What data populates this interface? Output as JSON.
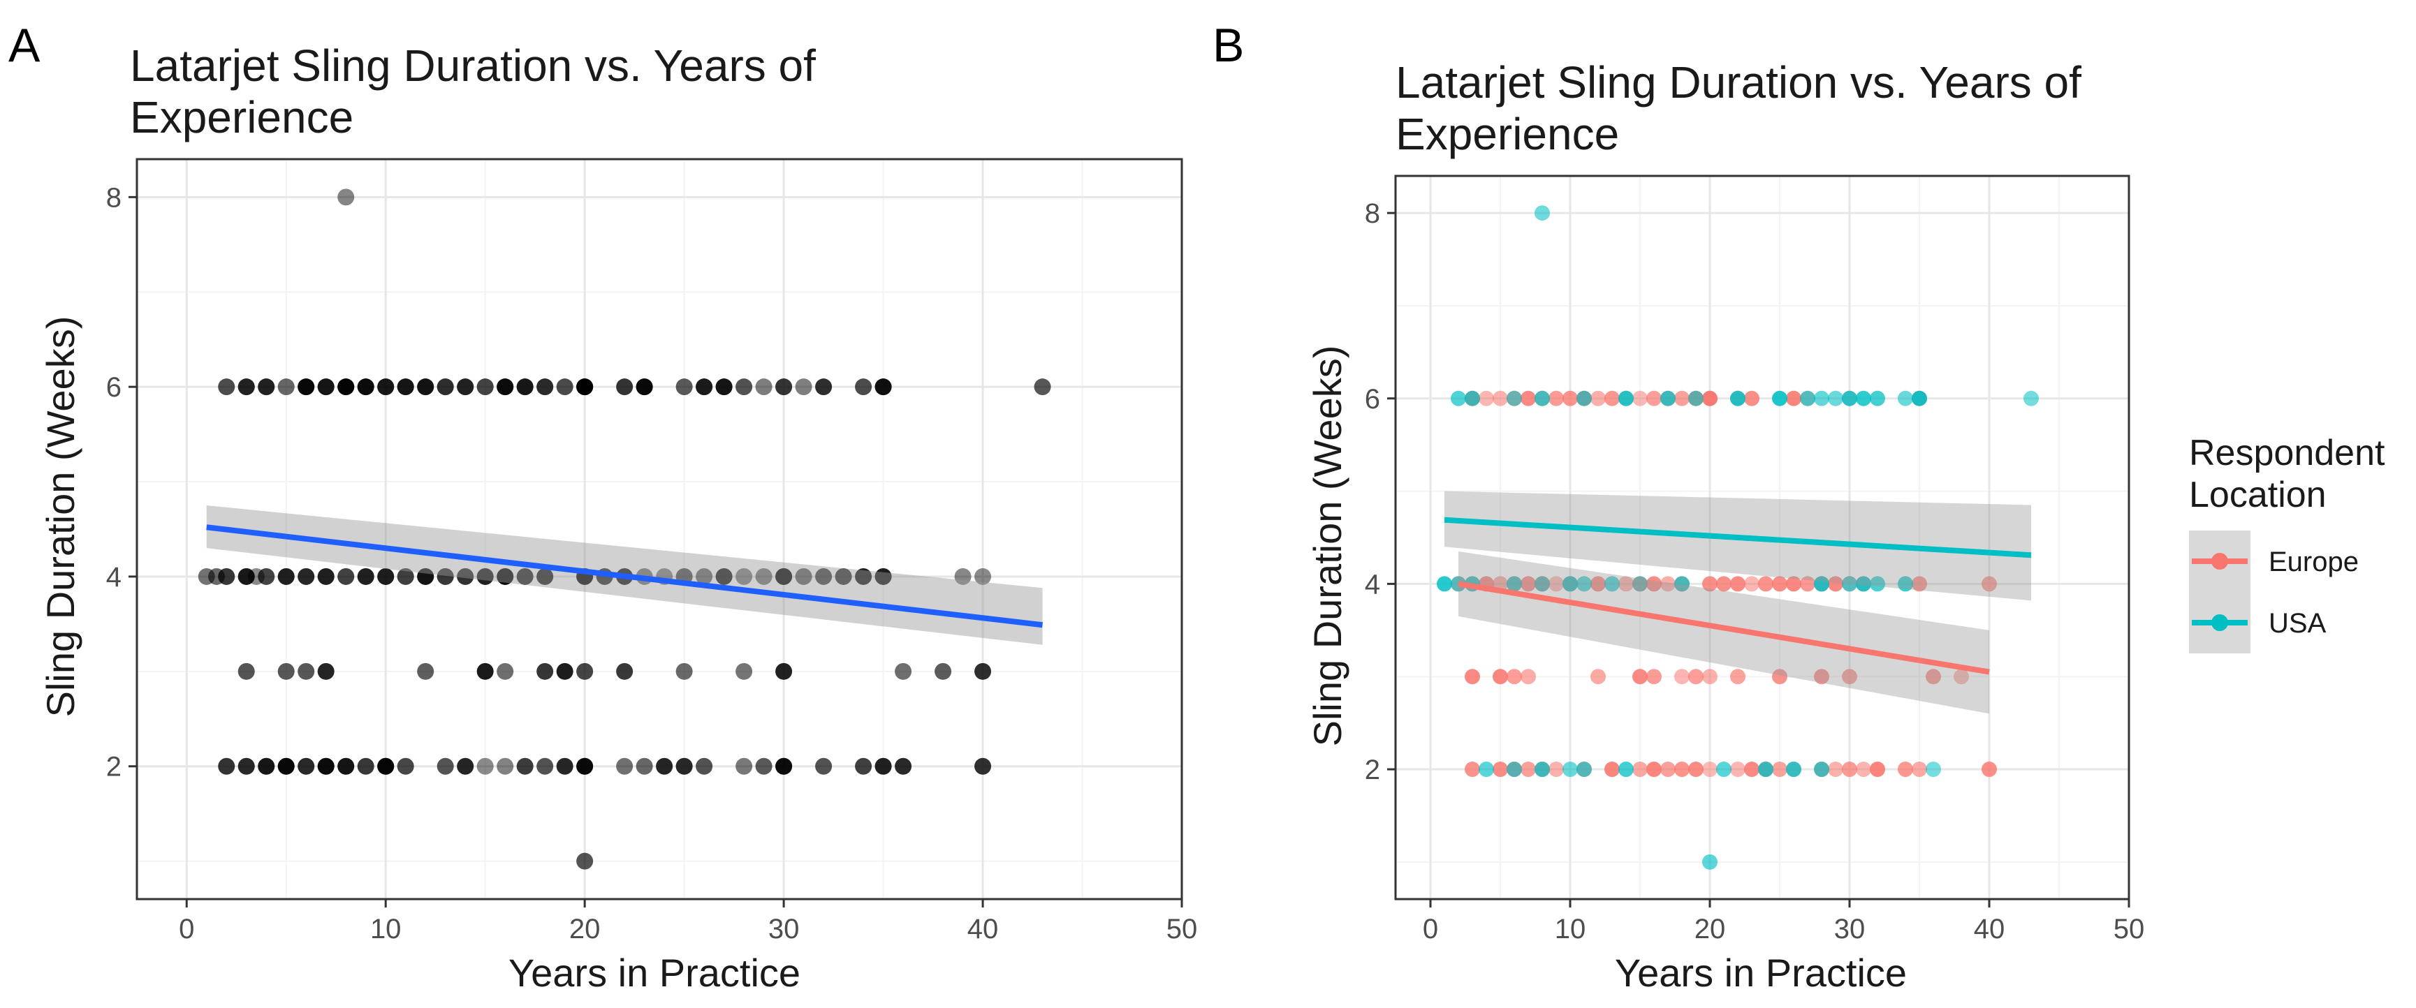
{
  "colors": {
    "panel_a_point": "#000000",
    "panel_a_fit": "#1f5fff",
    "ribbon": "#999999",
    "europe": "#f8766d",
    "usa": "#00bfc4",
    "grid_major": "#e6e6e6",
    "grid_minor": "#f3f3f3",
    "panel_border": "#333333"
  },
  "chart_data": [
    {
      "type": "scatter",
      "panel_label": "A",
      "title_lines": [
        "Latarjet Sling Duration vs. Years of",
        "Experience"
      ],
      "xlabel": "Years in Practice",
      "ylabel": "Sling Duration (Weeks)",
      "xlim": [
        -2.5,
        50
      ],
      "ylim": [
        0.6,
        8.4
      ],
      "xticks": [
        0,
        10,
        20,
        30,
        40,
        50
      ],
      "yticks": [
        2,
        4,
        6,
        8
      ],
      "grid": true,
      "legend": null,
      "points": [
        {
          "y": 8,
          "xs": [
            8
          ]
        },
        {
          "y": 6,
          "xs": [
            2,
            3,
            3,
            4,
            4,
            5,
            6,
            6,
            7,
            7,
            8,
            8,
            9,
            9,
            10,
            10,
            11,
            11,
            12,
            12,
            13,
            13,
            14,
            14,
            15,
            15,
            16,
            16,
            17,
            17,
            18,
            18,
            19,
            20,
            20,
            20,
            22,
            23,
            23,
            25,
            26,
            26,
            27,
            27,
            28,
            29,
            30,
            30,
            31,
            32,
            34,
            35,
            35,
            43
          ]
        },
        {
          "y": 4,
          "xs": [
            1,
            1.5,
            2,
            2,
            3,
            3,
            3.5,
            4,
            4,
            5,
            5,
            6,
            6,
            7,
            7,
            8,
            8,
            9,
            9,
            10,
            10,
            11,
            11,
            12,
            12,
            13,
            13,
            14,
            14,
            15,
            15,
            16,
            16,
            17,
            18,
            18,
            20,
            20,
            21,
            22,
            23,
            24,
            25,
            26,
            27,
            28,
            29,
            30,
            30,
            31,
            32,
            33,
            34,
            35,
            35,
            39,
            40
          ]
        },
        {
          "y": 3,
          "xs": [
            3,
            5,
            6,
            7,
            12,
            15,
            16,
            18,
            19,
            20,
            20,
            22,
            25,
            28,
            30,
            36,
            38,
            40
          ]
        },
        {
          "y": 2,
          "xs": [
            2,
            3,
            3,
            4,
            4,
            5,
            5,
            6,
            6,
            7,
            7,
            8,
            8,
            9,
            10,
            10,
            11,
            13,
            14,
            15,
            16,
            17,
            18,
            19,
            20,
            20,
            22,
            23,
            24,
            25,
            25,
            26,
            28,
            29,
            30,
            30,
            32,
            34,
            35,
            35,
            36,
            40
          ]
        },
        {
          "y": 1,
          "xs": [
            20
          ]
        }
      ],
      "fit": {
        "x": [
          1,
          43
        ],
        "y": [
          4.52,
          3.49
        ],
        "ribbon_lower": [
          4.3,
          3.28
        ],
        "ribbon_upper": [
          4.75,
          3.88
        ]
      }
    },
    {
      "type": "scatter",
      "panel_label": "B",
      "title_lines": [
        "Latarjet Sling Duration vs. Years of",
        "Experience"
      ],
      "xlabel": "Years in Practice",
      "ylabel": "Sling Duration (Weeks)",
      "xlim": [
        -2.5,
        50
      ],
      "ylim": [
        0.6,
        8.4
      ],
      "xticks": [
        0,
        10,
        20,
        30,
        40,
        50
      ],
      "yticks": [
        2,
        4,
        6,
        8
      ],
      "grid": true,
      "legend": {
        "title_lines": [
          "Respondent",
          "Location"
        ],
        "entries": [
          "Europe",
          "USA"
        ],
        "placement": "right"
      },
      "series": [
        {
          "name": "Europe",
          "points": [
            {
              "y": 6,
              "xs": [
                3,
                4,
                5,
                6,
                7,
                8,
                9,
                10,
                11,
                12,
                13,
                14,
                15,
                16,
                17,
                18,
                19,
                20,
                20,
                22,
                23,
                26,
                27,
                30,
                35
              ]
            },
            {
              "y": 4,
              "xs": [
                2,
                3,
                4,
                5,
                6,
                7,
                8,
                9,
                10,
                12,
                14,
                15,
                16,
                17,
                18,
                20,
                21,
                22,
                23,
                24,
                25,
                26,
                27,
                28,
                29,
                30,
                31,
                35,
                40
              ]
            },
            {
              "y": 3,
              "xs": [
                3,
                5,
                6,
                7,
                12,
                15,
                16,
                18,
                19,
                20,
                22,
                25,
                28,
                30,
                36,
                38
              ]
            },
            {
              "y": 2,
              "xs": [
                3,
                5,
                6,
                7,
                8,
                9,
                11,
                13,
                15,
                16,
                17,
                18,
                19,
                20,
                22,
                23,
                24,
                25,
                26,
                28,
                29,
                30,
                31,
                32,
                34,
                35,
                40
              ]
            }
          ],
          "fit": {
            "x": [
              2,
              40
            ],
            "y": [
              4.0,
              3.05
            ],
            "ribbon_lower": [
              3.65,
              2.6
            ],
            "ribbon_upper": [
              4.35,
              3.5
            ]
          }
        },
        {
          "name": "USA",
          "points": [
            {
              "y": 8,
              "xs": [
                8
              ]
            },
            {
              "y": 6,
              "xs": [
                2,
                3,
                6,
                8,
                11,
                14,
                17,
                19,
                22,
                25,
                27,
                28,
                29,
                30,
                31,
                32,
                34,
                35,
                43
              ]
            },
            {
              "y": 4,
              "xs": [
                1,
                2,
                3,
                6,
                8,
                10,
                11,
                13,
                15,
                18,
                28,
                30,
                31,
                32,
                34
              ]
            },
            {
              "y": 2,
              "xs": [
                4,
                6,
                8,
                10,
                11,
                14,
                21,
                24,
                26,
                28,
                36
              ]
            },
            {
              "y": 1,
              "xs": [
                20
              ]
            }
          ],
          "fit": {
            "x": [
              1,
              43
            ],
            "y": [
              4.69,
              4.31
            ],
            "ribbon_lower": [
              4.4,
              3.82
            ],
            "ribbon_upper": [
              5.0,
              4.85
            ]
          }
        }
      ]
    }
  ]
}
